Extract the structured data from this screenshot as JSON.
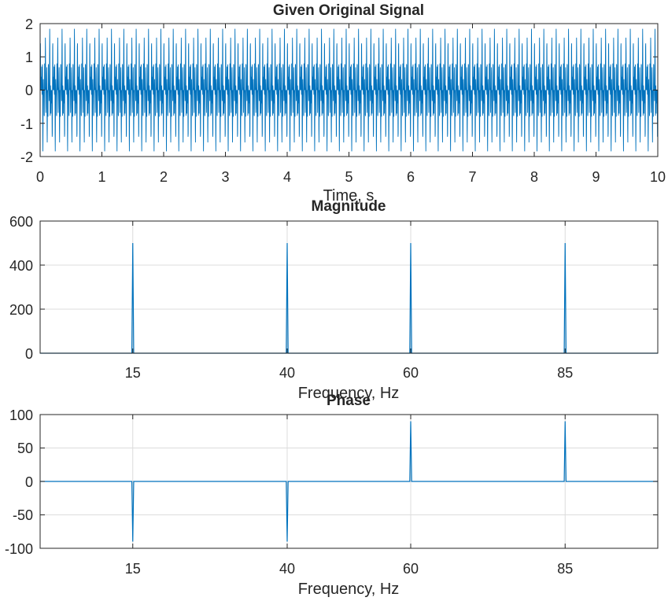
{
  "chart_data": [
    {
      "type": "line",
      "title": "Given Original Signal",
      "xlabel": "Time, s",
      "ylabel": "",
      "xlim": [
        0,
        10
      ],
      "ylim": [
        -2,
        2
      ],
      "xticks": [
        "0",
        "1",
        "2",
        "3",
        "4",
        "5",
        "6",
        "7",
        "8",
        "9",
        "10"
      ],
      "yticks": [
        "2",
        "1",
        "0",
        "-1",
        "-2"
      ],
      "grid": false,
      "series": [
        {
          "components": [
            {
              "freq_hz": 15,
              "amplitude": 0.5
            },
            {
              "freq_hz": 40,
              "amplitude": 0.5
            },
            {
              "freq_hz": 60,
              "amplitude": 0.5
            },
            {
              "freq_hz": 85,
              "amplitude": 0.5
            }
          ],
          "color": "#0072BD"
        }
      ]
    },
    {
      "type": "line",
      "title": "Magnitude",
      "xlabel": "Frequency, Hz",
      "ylabel": "",
      "xlim": [
        0,
        100
      ],
      "ylim": [
        0,
        600
      ],
      "xticks": [
        "15",
        "40",
        "60",
        "85"
      ],
      "yticks": [
        "600",
        "400",
        "200",
        "0"
      ],
      "grid": true,
      "series": [
        {
          "peaks": [
            {
              "x": 15,
              "y": 500
            },
            {
              "x": 40,
              "y": 500
            },
            {
              "x": 60,
              "y": 500
            },
            {
              "x": 85,
              "y": 500
            }
          ],
          "baseline": 0,
          "color": "#0072BD"
        }
      ]
    },
    {
      "type": "line",
      "title": "Phase",
      "xlabel": "Frequency, Hz",
      "ylabel": "",
      "xlim": [
        0,
        100
      ],
      "ylim": [
        -100,
        100
      ],
      "xticks": [
        "15",
        "40",
        "60",
        "85"
      ],
      "yticks": [
        "100",
        "50",
        "0",
        "-50",
        "-100"
      ],
      "grid": true,
      "series": [
        {
          "peaks": [
            {
              "x": 15,
              "y": -90
            },
            {
              "x": 40,
              "y": -90
            },
            {
              "x": 60,
              "y": 90
            },
            {
              "x": 85,
              "y": 90
            }
          ],
          "baseline": 0,
          "color": "#0072BD"
        }
      ]
    }
  ]
}
